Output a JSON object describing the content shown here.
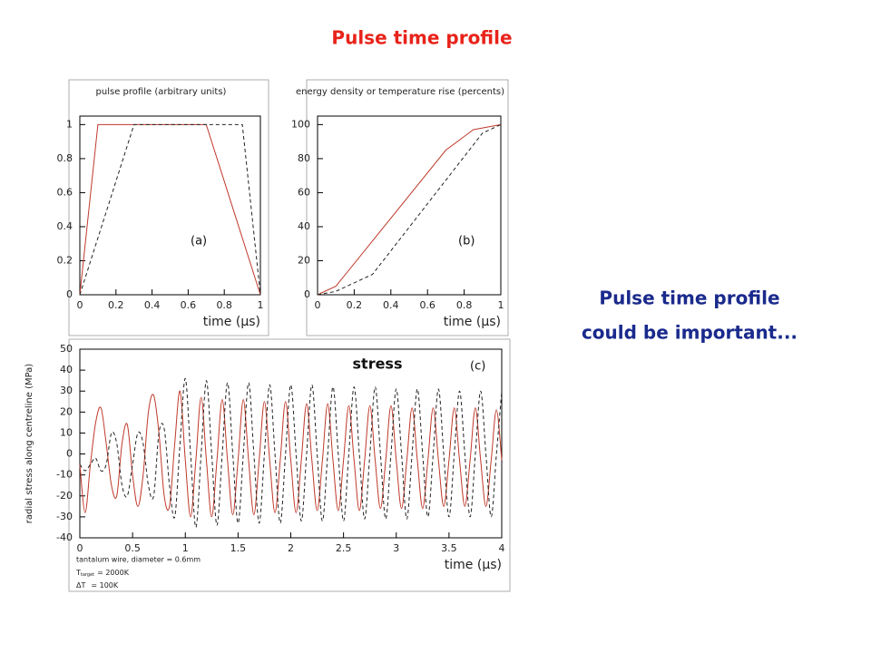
{
  "title": "Pulse time profile",
  "note": [
    "Pulse time profile",
    "could be important..."
  ],
  "footnote": {
    "wire": "tantalum wire, diameter = 0.6mm",
    "lines": [
      {
        "symbol": "T",
        "subscript": "target",
        "text": "= 2000K"
      },
      {
        "symbol": "ΔT",
        "text": "= 100K"
      }
    ]
  },
  "chart_data": [
    {
      "type": "line",
      "title": "pulse profile (arbitrary units)",
      "xlabel": "time (μs)",
      "annotations": [
        "(a)"
      ],
      "xlim": [
        0,
        1
      ],
      "xticks": [
        0,
        0.2,
        0.4,
        0.6,
        0.8,
        1
      ],
      "ylim": [
        0,
        1.05
      ],
      "yticks": [
        0,
        0.2,
        0.4,
        0.6,
        0.8,
        1
      ],
      "series": [
        {
          "color": "#c0392b",
          "dash": false,
          "x": [
            0,
            0.1,
            0.7,
            1
          ],
          "values": [
            0,
            1,
            1,
            0
          ]
        },
        {
          "color": "#222222",
          "dash": true,
          "x": [
            0,
            0.3,
            0.9,
            1
          ],
          "values": [
            0,
            1,
            1,
            0
          ]
        }
      ]
    },
    {
      "type": "line",
      "title": "energy density or temperature rise (percents)",
      "xlabel": "time (μs)",
      "annotations": [
        "(b)"
      ],
      "xlim": [
        0,
        1
      ],
      "xticks": [
        0,
        0.2,
        0.4,
        0.6,
        0.8,
        1
      ],
      "ylim": [
        0,
        105
      ],
      "yticks": [
        0,
        20,
        40,
        60,
        80,
        100
      ],
      "series": [
        {
          "color": "#c0392b",
          "dash": false,
          "x": [
            0,
            0.1,
            0.7,
            0.85,
            1
          ],
          "values": [
            0,
            5,
            85,
            97,
            100
          ]
        },
        {
          "color": "#222222",
          "dash": true,
          "x": [
            0,
            0.1,
            0.3,
            0.9,
            1
          ],
          "values": [
            0,
            2,
            12,
            95,
            100
          ]
        }
      ]
    },
    {
      "type": "line",
      "ylabel": "radial stress along centreline (MPa)",
      "xlabel": "time (μs)",
      "annotations": [
        "stress",
        "(c)"
      ],
      "xlim": [
        0,
        4
      ],
      "xticks": [
        0,
        0.5,
        1,
        1.5,
        2,
        2.5,
        3,
        3.5,
        4
      ],
      "ylim": [
        -40,
        50
      ],
      "yticks": [
        -40,
        -30,
        -20,
        -10,
        0,
        10,
        20,
        30,
        40,
        50
      ],
      "x": [
        0,
        0.05,
        0.1,
        0.15,
        0.2,
        0.25,
        0.3,
        0.35,
        0.4,
        0.45,
        0.5,
        0.55,
        0.6,
        0.65,
        0.7,
        0.75,
        0.8,
        0.85,
        0.9,
        0.95,
        1,
        1.05,
        1.1,
        1.15,
        1.2,
        1.25,
        1.3,
        1.35,
        1.4,
        1.45,
        1.5,
        1.55,
        1.6,
        1.65,
        1.7,
        1.75,
        1.8,
        1.85,
        1.9,
        1.95,
        2,
        2.05,
        2.1,
        2.15,
        2.2,
        2.25,
        2.3,
        2.35,
        2.4,
        2.45,
        2.5,
        2.55,
        2.6,
        2.65,
        2.7,
        2.75,
        2.8,
        2.85,
        2.9,
        2.95,
        3,
        3.05,
        3.1,
        3.15,
        3.2,
        3.25,
        3.3,
        3.35,
        3.4,
        3.45,
        3.5,
        3.55,
        3.6,
        3.65,
        3.7,
        3.75,
        3.8,
        3.85,
        3.9,
        3.95,
        4
      ],
      "series": [
        {
          "color": "#c0392b",
          "dash": false,
          "values": [
            -5,
            -28,
            -5,
            15,
            22,
            5,
            -15,
            -20,
            5,
            14,
            -10,
            -25,
            -10,
            20,
            28,
            10,
            -20,
            -25,
            5,
            30,
            -3,
            -30,
            -3,
            27,
            -3,
            -30,
            -3,
            26,
            -3,
            -29,
            -3,
            26,
            -3,
            -29,
            -3,
            25,
            -3,
            -28,
            -3,
            25,
            -3,
            -28,
            -3,
            24,
            -3,
            -27,
            -3,
            24,
            -3,
            -27,
            -3,
            23,
            -3,
            -27,
            -3,
            23,
            -3,
            -26,
            -3,
            23,
            -3,
            -26,
            -3,
            22,
            -3,
            -26,
            -3,
            22,
            -3,
            -25,
            -3,
            22,
            -3,
            -25,
            -3,
            22,
            -3,
            -25,
            -3,
            21,
            -3
          ]
        },
        {
          "color": "#222222",
          "dash": true,
          "values": [
            -5,
            -8,
            -5,
            -2,
            -8,
            -5,
            10,
            5,
            -15,
            -20,
            -5,
            10,
            5,
            -15,
            -20,
            10,
            12,
            -15,
            -30,
            5,
            36,
            0,
            -35,
            0,
            35,
            0,
            -34,
            0,
            34,
            0,
            -33,
            0,
            34,
            0,
            -33,
            0,
            33,
            0,
            -33,
            0,
            33,
            0,
            -32,
            0,
            33,
            0,
            -32,
            0,
            32,
            0,
            -32,
            0,
            32,
            0,
            -31,
            0,
            32,
            0,
            -31,
            0,
            31,
            0,
            -31,
            0,
            31,
            0,
            -30,
            0,
            31,
            0,
            -30,
            0,
            30,
            0,
            -30,
            0,
            30,
            0,
            -30,
            0,
            30
          ]
        }
      ]
    }
  ]
}
